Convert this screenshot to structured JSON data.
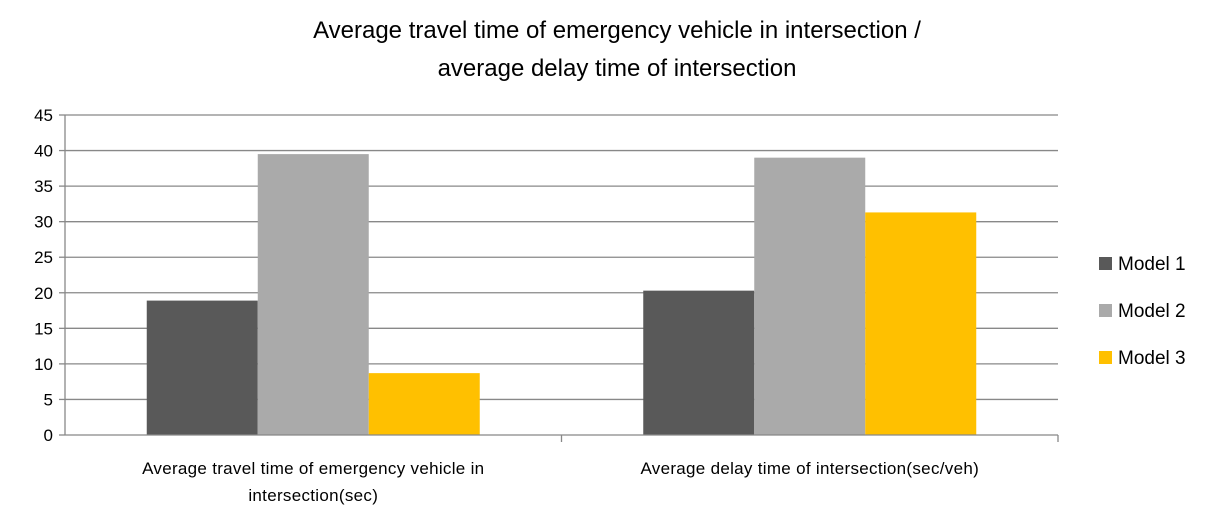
{
  "chart_data": {
    "type": "bar",
    "title_lines": [
      "Average travel time of emergency vehicle in intersection /",
      "average delay time of intersection"
    ],
    "categories": [
      [
        "Average travel time of emergency vehicle in",
        "intersection(sec)"
      ],
      [
        "Average delay time of intersection(sec/veh)"
      ]
    ],
    "series": [
      {
        "name": "Model 1",
        "color": "#595959",
        "values": [
          18.9,
          20.3
        ]
      },
      {
        "name": "Model 2",
        "color": "#aaaaaa",
        "values": [
          39.5,
          39.0
        ]
      },
      {
        "name": "Model 3",
        "color": "#ffc000",
        "values": [
          8.7,
          31.3
        ]
      }
    ],
    "ylim": [
      0,
      45
    ],
    "yticks": [
      "0",
      "5",
      "10",
      "15",
      "20",
      "25",
      "30",
      "35",
      "40",
      "45"
    ],
    "grid": true,
    "legend_position": "right",
    "gridline_color": "#888888",
    "axis_color": "#888888"
  }
}
